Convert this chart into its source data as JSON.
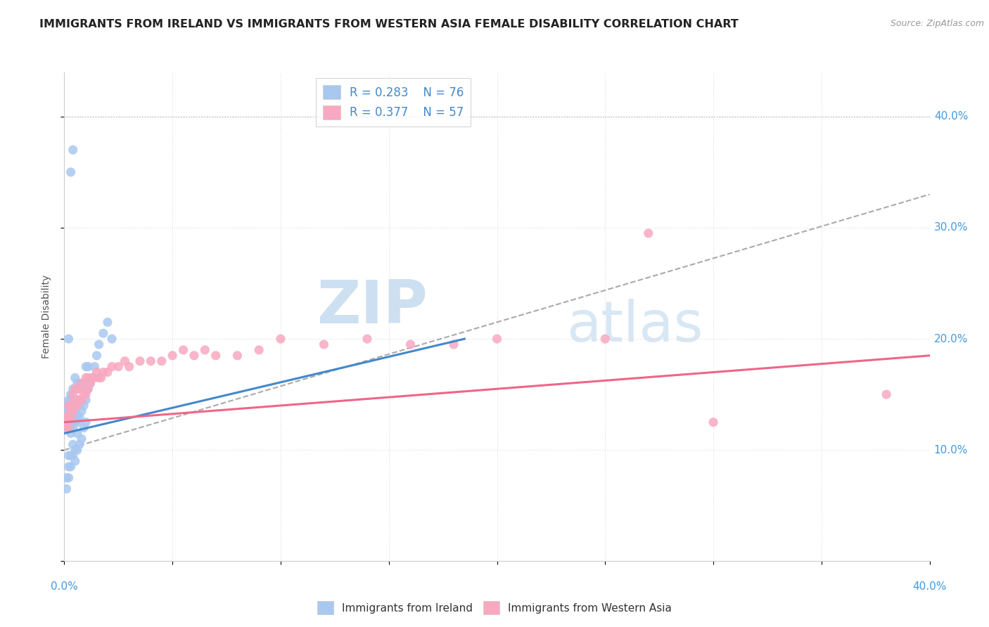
{
  "title": "IMMIGRANTS FROM IRELAND VS IMMIGRANTS FROM WESTERN ASIA FEMALE DISABILITY CORRELATION CHART",
  "source": "Source: ZipAtlas.com",
  "ylabel": "Female Disability",
  "legend_ireland": {
    "R": "0.283",
    "N": "76"
  },
  "legend_western_asia": {
    "R": "0.377",
    "N": "57"
  },
  "ireland_color": "#a8c8f0",
  "western_asia_color": "#f8a8c0",
  "ireland_line_color": "#4488cc",
  "western_asia_line_color": "#ee6688",
  "trend_line_color": "#aaaaaa",
  "xlim": [
    0.0,
    0.4
  ],
  "ylim": [
    0.0,
    0.44
  ],
  "background_color": "#ffffff",
  "ireland_scatter_x": [
    0.001,
    0.001,
    0.001,
    0.002,
    0.002,
    0.002,
    0.002,
    0.002,
    0.002,
    0.003,
    0.003,
    0.003,
    0.003,
    0.003,
    0.003,
    0.003,
    0.003,
    0.004,
    0.004,
    0.004,
    0.004,
    0.004,
    0.004,
    0.005,
    0.005,
    0.005,
    0.005,
    0.005,
    0.005,
    0.006,
    0.006,
    0.006,
    0.006,
    0.006,
    0.007,
    0.007,
    0.007,
    0.007,
    0.008,
    0.008,
    0.008,
    0.009,
    0.009,
    0.01,
    0.01,
    0.01,
    0.011,
    0.011,
    0.012,
    0.013,
    0.014,
    0.015,
    0.016,
    0.018,
    0.02,
    0.022,
    0.001,
    0.001,
    0.002,
    0.002,
    0.002,
    0.003,
    0.003,
    0.004,
    0.004,
    0.005,
    0.006,
    0.007,
    0.008,
    0.009,
    0.01,
    0.002,
    0.003,
    0.004,
    0.005,
    0.006
  ],
  "ireland_scatter_y": [
    0.13,
    0.135,
    0.14,
    0.12,
    0.125,
    0.13,
    0.135,
    0.14,
    0.145,
    0.115,
    0.12,
    0.125,
    0.13,
    0.135,
    0.14,
    0.145,
    0.15,
    0.12,
    0.125,
    0.13,
    0.135,
    0.14,
    0.155,
    0.125,
    0.13,
    0.135,
    0.14,
    0.145,
    0.165,
    0.125,
    0.13,
    0.14,
    0.145,
    0.16,
    0.13,
    0.14,
    0.145,
    0.16,
    0.135,
    0.145,
    0.16,
    0.14,
    0.16,
    0.145,
    0.155,
    0.175,
    0.155,
    0.175,
    0.16,
    0.165,
    0.175,
    0.185,
    0.195,
    0.205,
    0.215,
    0.2,
    0.065,
    0.075,
    0.075,
    0.085,
    0.095,
    0.085,
    0.095,
    0.095,
    0.105,
    0.1,
    0.115,
    0.105,
    0.11,
    0.12,
    0.125,
    0.2,
    0.35,
    0.37,
    0.09,
    0.1
  ],
  "western_asia_scatter_x": [
    0.001,
    0.001,
    0.002,
    0.002,
    0.002,
    0.003,
    0.003,
    0.003,
    0.004,
    0.004,
    0.004,
    0.005,
    0.005,
    0.005,
    0.006,
    0.006,
    0.007,
    0.007,
    0.008,
    0.008,
    0.009,
    0.01,
    0.01,
    0.011,
    0.011,
    0.012,
    0.013,
    0.014,
    0.015,
    0.016,
    0.017,
    0.018,
    0.02,
    0.022,
    0.025,
    0.028,
    0.03,
    0.035,
    0.04,
    0.045,
    0.05,
    0.055,
    0.06,
    0.065,
    0.07,
    0.08,
    0.09,
    0.1,
    0.12,
    0.14,
    0.16,
    0.18,
    0.2,
    0.25,
    0.3,
    0.38,
    0.27
  ],
  "western_asia_scatter_y": [
    0.12,
    0.13,
    0.12,
    0.13,
    0.14,
    0.13,
    0.135,
    0.14,
    0.135,
    0.14,
    0.15,
    0.14,
    0.145,
    0.155,
    0.14,
    0.155,
    0.145,
    0.155,
    0.145,
    0.16,
    0.15,
    0.15,
    0.165,
    0.155,
    0.165,
    0.16,
    0.165,
    0.165,
    0.17,
    0.165,
    0.165,
    0.17,
    0.17,
    0.175,
    0.175,
    0.18,
    0.175,
    0.18,
    0.18,
    0.18,
    0.185,
    0.19,
    0.185,
    0.19,
    0.185,
    0.185,
    0.19,
    0.2,
    0.195,
    0.2,
    0.195,
    0.195,
    0.2,
    0.2,
    0.125,
    0.15,
    0.295
  ],
  "ireland_line": {
    "x0": 0.0,
    "y0": 0.115,
    "x1": 0.185,
    "y1": 0.2
  },
  "western_asia_line": {
    "x0": 0.0,
    "y0": 0.125,
    "x1": 0.4,
    "y1": 0.185
  },
  "dashed_line": {
    "x0": 0.0,
    "y0": 0.1,
    "x1": 0.4,
    "y1": 0.33
  }
}
